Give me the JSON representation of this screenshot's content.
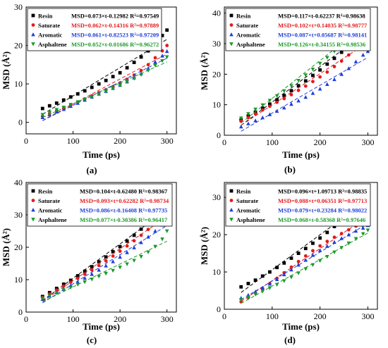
{
  "chart_data": [
    {
      "panel_label": "(a)",
      "type": "scatter",
      "xlabel": "Time (ps)",
      "ylabel": "MSD (Å²)",
      "xlim": [
        0,
        320
      ],
      "ylim": [
        -3,
        30
      ],
      "xticks": [
        0,
        100,
        200,
        300
      ],
      "yticks": [
        0,
        10,
        20,
        30
      ],
      "legend_position": "top-left",
      "series": [
        {
          "name": "Resin",
          "color": "#000000",
          "marker": "square",
          "fit_text": "MSD=0.073×t-0.12982 R²=0.97549",
          "x": [
            35,
            50,
            65,
            80,
            95,
            110,
            125,
            140,
            155,
            170,
            185,
            200,
            215,
            230,
            245,
            260,
            275,
            290,
            300
          ],
          "y": [
            3.6,
            4.3,
            5.0,
            5.8,
            6.6,
            7.4,
            8.2,
            9.1,
            10.0,
            10.9,
            11.9,
            12.9,
            14.2,
            15.6,
            17.0,
            18.6,
            20.4,
            22.6,
            24.0
          ]
        },
        {
          "name": "Saturate",
          "color": "#e41a1c",
          "marker": "circle",
          "fit_text": "MSD=0.062×t-0.14316 R²=0.97889",
          "x": [
            35,
            50,
            65,
            80,
            95,
            110,
            125,
            140,
            155,
            170,
            185,
            200,
            215,
            230,
            245,
            260,
            275,
            290,
            300
          ],
          "y": [
            1.6,
            2.3,
            3.0,
            3.7,
            4.5,
            5.3,
            6.1,
            6.9,
            7.7,
            8.5,
            9.3,
            10.2,
            11.2,
            12.3,
            13.5,
            15.0,
            16.8,
            18.6,
            20.0
          ]
        },
        {
          "name": "Aromatic",
          "color": "#1f3fd8",
          "marker": "triangle-up",
          "fit_text": "MSD=0.061×t-0.82523 R²=0.97209",
          "x": [
            35,
            50,
            65,
            80,
            95,
            110,
            125,
            140,
            155,
            170,
            185,
            200,
            215,
            230,
            245,
            260,
            275,
            290,
            300
          ],
          "y": [
            1.3,
            2.0,
            2.7,
            3.4,
            4.2,
            5.0,
            5.8,
            6.6,
            7.4,
            8.1,
            8.9,
            9.7,
            10.6,
            11.6,
            12.7,
            14.0,
            15.7,
            17.3,
            18.5
          ]
        },
        {
          "name": "Asphaltene",
          "color": "#1a9a2a",
          "marker": "triangle-down",
          "fit_text": "MSD=0.052×t-0.01686 R²=0.96272",
          "x": [
            35,
            50,
            65,
            80,
            95,
            110,
            125,
            140,
            155,
            170,
            185,
            200,
            215,
            230,
            245,
            260,
            275,
            290,
            300
          ],
          "y": [
            2.0,
            2.6,
            3.3,
            3.9,
            4.6,
            5.3,
            6.0,
            6.6,
            7.3,
            8.0,
            8.8,
            9.6,
            10.5,
            11.4,
            12.4,
            13.5,
            14.8,
            16.0,
            17.0
          ]
        }
      ]
    },
    {
      "panel_label": "(b)",
      "type": "scatter",
      "xlabel": "Time (ps)",
      "ylabel": "MSD (Å²)",
      "xlim": [
        0,
        320
      ],
      "ylim": [
        0,
        42
      ],
      "xticks": [
        0,
        100,
        200,
        300
      ],
      "yticks": [
        0,
        10,
        20,
        30,
        40
      ],
      "legend_position": "top-left",
      "series": [
        {
          "name": "Resin",
          "color": "#000000",
          "marker": "square",
          "fit_text": "MSD=0.117×t-0.62237 R²=0.98638",
          "x": [
            35,
            50,
            65,
            80,
            95,
            110,
            125,
            140,
            155,
            170,
            185,
            200,
            215,
            230,
            245,
            260,
            275,
            290,
            300
          ],
          "y": [
            5.0,
            6.3,
            7.6,
            8.9,
            10.2,
            11.6,
            13.0,
            14.6,
            16.2,
            17.8,
            19.6,
            21.4,
            23.3,
            25.2,
            27.2,
            29.5,
            32.0,
            34.6,
            36.5
          ]
        },
        {
          "name": "Saturate",
          "color": "#e41a1c",
          "marker": "circle",
          "fit_text": "MSD=0.102×t+0.14035 R²=0.98777",
          "x": [
            35,
            50,
            65,
            80,
            95,
            110,
            125,
            140,
            155,
            170,
            185,
            200,
            215,
            230,
            245,
            260,
            275,
            290,
            300
          ],
          "y": [
            4.6,
            5.8,
            7.0,
            8.3,
            9.5,
            10.8,
            12.0,
            13.3,
            14.7,
            16.1,
            17.6,
            19.1,
            20.7,
            22.5,
            24.3,
            26.3,
            28.5,
            30.8,
            32.5
          ]
        },
        {
          "name": "Aromatic",
          "color": "#1f3fd8",
          "marker": "triangle-up",
          "fit_text": "MSD=0.087×t+0.05687 R²=0.98141",
          "x": [
            35,
            50,
            65,
            80,
            95,
            110,
            125,
            140,
            155,
            170,
            185,
            200,
            215,
            230,
            245,
            260,
            275,
            290,
            300
          ],
          "y": [
            2.8,
            3.8,
            4.8,
            5.8,
            6.8,
            7.9,
            9.0,
            10.2,
            11.3,
            12.5,
            13.8,
            15.2,
            16.7,
            18.3,
            20.0,
            21.9,
            24.1,
            26.3,
            27.5
          ]
        },
        {
          "name": "Asphaltene",
          "color": "#1a9a2a",
          "marker": "triangle-down",
          "fit_text": "MSD=0.126×t-0.34155 R²=0.98536",
          "x": [
            35,
            50,
            65,
            80,
            95,
            110,
            125,
            140,
            155,
            170,
            185,
            200,
            215,
            230,
            245,
            260,
            275,
            290,
            300
          ],
          "y": [
            5.6,
            7.0,
            8.5,
            9.9,
            11.4,
            12.9,
            14.5,
            16.2,
            17.9,
            19.7,
            21.6,
            23.5,
            25.4,
            27.5,
            29.6,
            31.9,
            34.4,
            37.0,
            39.0
          ]
        }
      ]
    },
    {
      "panel_label": "(c)",
      "type": "scatter",
      "xlabel": "Time (ps)",
      "ylabel": "MSD (Å²)",
      "xlim": [
        0,
        320
      ],
      "ylim": [
        0,
        40
      ],
      "xticks": [
        0,
        100,
        200,
        300
      ],
      "yticks": [
        0,
        10,
        20,
        30,
        40
      ],
      "legend_position": "top-left",
      "series": [
        {
          "name": "Resin",
          "color": "#000000",
          "marker": "square",
          "fit_text": "MSD=0.104×t-0.62480 R²=0.98367",
          "x": [
            35,
            50,
            65,
            80,
            95,
            110,
            125,
            140,
            155,
            170,
            185,
            200,
            215,
            230,
            245,
            260,
            275,
            290,
            300
          ],
          "y": [
            4.8,
            6.0,
            7.3,
            8.6,
            9.8,
            11.2,
            12.6,
            14.0,
            15.5,
            17.0,
            18.6,
            20.2,
            21.9,
            23.7,
            25.6,
            27.5,
            29.6,
            31.6,
            33.0
          ]
        },
        {
          "name": "Saturate",
          "color": "#e41a1c",
          "marker": "circle",
          "fit_text": "MSD=0.093×t+0.62282 R²=0.98734",
          "x": [
            35,
            50,
            65,
            80,
            95,
            110,
            125,
            140,
            155,
            170,
            185,
            200,
            215,
            230,
            245,
            260,
            275,
            290,
            300
          ],
          "y": [
            4.5,
            5.6,
            6.8,
            8.0,
            9.2,
            10.4,
            11.7,
            13.0,
            14.4,
            15.8,
            17.3,
            18.8,
            20.4,
            22.0,
            23.7,
            25.5,
            27.4,
            29.5,
            31.0
          ]
        },
        {
          "name": "Aromatic",
          "color": "#1f3fd8",
          "marker": "triangle-up",
          "fit_text": "MSD=0.086×t-0.16408 R²=0.97735",
          "x": [
            35,
            50,
            65,
            80,
            95,
            110,
            125,
            140,
            155,
            170,
            185,
            200,
            215,
            230,
            245,
            260,
            275,
            290,
            300
          ],
          "y": [
            4.0,
            5.0,
            6.0,
            7.1,
            8.2,
            9.3,
            10.5,
            11.7,
            13.0,
            14.3,
            15.6,
            17.0,
            18.4,
            19.9,
            21.5,
            23.2,
            25.0,
            26.9,
            28.0
          ]
        },
        {
          "name": "Asphaltene",
          "color": "#1a9a2a",
          "marker": "triangle-down",
          "fit_text": "MSD=0.077×t-0.30386 R²=0.96417",
          "x": [
            35,
            50,
            65,
            80,
            95,
            110,
            125,
            140,
            155,
            170,
            185,
            200,
            215,
            230,
            245,
            260,
            275,
            290,
            300
          ],
          "y": [
            4.2,
            5.0,
            5.9,
            6.8,
            7.6,
            8.5,
            9.3,
            10.1,
            11.0,
            11.9,
            12.8,
            13.8,
            14.8,
            15.9,
            17.1,
            18.5,
            20.2,
            22.5,
            25.0
          ]
        }
      ]
    },
    {
      "panel_label": "(d)",
      "type": "scatter",
      "xlabel": "Time (ps)",
      "ylabel": "MSD (Å²)",
      "xlim": [
        0,
        320
      ],
      "ylim": [
        0,
        34
      ],
      "xticks": [
        0,
        100,
        200,
        300
      ],
      "yticks": [
        0,
        10,
        20,
        30
      ],
      "legend_position": "top-left",
      "series": [
        {
          "name": "Resin",
          "color": "#000000",
          "marker": "square",
          "fit_text": "MSD=0.096×t+1.09713 R²=0.98835",
          "x": [
            35,
            50,
            65,
            80,
            95,
            110,
            125,
            140,
            155,
            170,
            185,
            200,
            215,
            230,
            245,
            260,
            275,
            290,
            300
          ],
          "y": [
            6.0,
            6.9,
            7.8,
            8.9,
            10.0,
            11.2,
            12.4,
            13.7,
            15.0,
            16.3,
            17.7,
            19.1,
            20.6,
            22.2,
            23.8,
            25.6,
            27.5,
            29.6,
            31.3
          ]
        },
        {
          "name": "Saturate",
          "color": "#e41a1c",
          "marker": "circle",
          "fit_text": "MSD=0.088×t+0.06351 R²=0.97713",
          "x": [
            35,
            50,
            65,
            80,
            95,
            110,
            125,
            140,
            155,
            170,
            185,
            200,
            215,
            230,
            245,
            260,
            275,
            290,
            300
          ],
          "y": [
            2.0,
            3.1,
            4.3,
            5.6,
            6.9,
            8.3,
            9.8,
            11.3,
            12.8,
            14.3,
            15.7,
            17.0,
            18.2,
            19.3,
            20.3,
            21.3,
            22.3,
            23.3,
            24.0
          ]
        },
        {
          "name": "Aromatic",
          "color": "#1f3fd8",
          "marker": "triangle-up",
          "fit_text": "MSD=0.079×t+0.23284 R²=0.98022",
          "x": [
            35,
            50,
            65,
            80,
            95,
            110,
            125,
            140,
            155,
            170,
            185,
            200,
            215,
            230,
            245,
            260,
            275,
            290,
            300
          ],
          "y": [
            3.0,
            3.8,
            4.7,
            5.7,
            6.8,
            8.0,
            9.3,
            10.6,
            11.9,
            13.2,
            14.5,
            15.8,
            16.9,
            18.0,
            19.0,
            20.0,
            21.0,
            21.8,
            22.5
          ]
        },
        {
          "name": "Asphaltene",
          "color": "#1a9a2a",
          "marker": "triangle-down",
          "fit_text": "MSD=0.068×t-0.58368 R²=0.97646",
          "x": [
            35,
            50,
            65,
            80,
            95,
            110,
            125,
            140,
            155,
            170,
            185,
            200,
            215,
            230,
            245,
            260,
            275,
            290,
            300
          ],
          "y": [
            2.5,
            3.2,
            4.0,
            4.8,
            5.7,
            6.6,
            7.6,
            8.6,
            9.7,
            10.8,
            11.9,
            13.0,
            14.1,
            15.3,
            16.5,
            17.7,
            18.9,
            20.2,
            21.2
          ]
        }
      ]
    }
  ]
}
